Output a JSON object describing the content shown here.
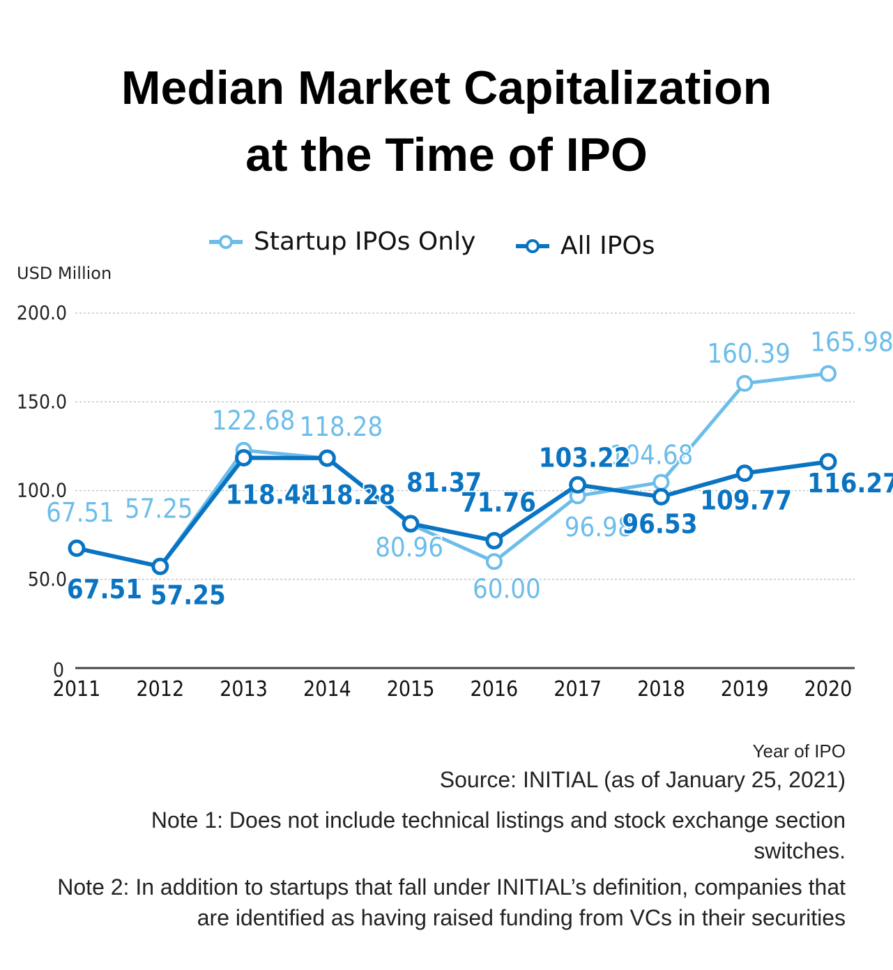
{
  "title_line1": "Median Market Capitalization",
  "title_line2": "at the Time of IPO",
  "colors": {
    "startup": "#6CBDEA",
    "all": "#0A74C2",
    "axis": "#444444",
    "grid": "#BBBBBB",
    "text": "#222222"
  },
  "chart_data": {
    "type": "line",
    "title": "Median Market Capitalization at the Time of IPO",
    "ylabel": "USD Million",
    "xlabel": "Year of IPO",
    "x": [
      "2011",
      "2012",
      "2013",
      "2014",
      "2015",
      "2016",
      "2017",
      "2018",
      "2019",
      "2020"
    ],
    "ylim": [
      0,
      200
    ],
    "yticks": [
      0,
      50,
      100,
      150,
      200
    ],
    "ytick_labels": [
      "0",
      "50.0",
      "100.0",
      "150.0",
      "200.0"
    ],
    "grid": true,
    "legend_position": "top-center",
    "series": [
      {
        "name": "Startup IPOs Only",
        "color": "#6CBDEA",
        "values": [
          67.51,
          57.25,
          122.68,
          118.28,
          80.96,
          60.0,
          96.98,
          104.68,
          160.39,
          165.98
        ],
        "labels": [
          "67.51",
          "57.25",
          "122.68",
          "118.28",
          "80.96",
          "60.00",
          "96.98",
          "104.68",
          "160.39",
          "165.98"
        ]
      },
      {
        "name": "All IPOs",
        "color": "#0A74C2",
        "values": [
          67.51,
          57.25,
          118.48,
          118.28,
          81.37,
          71.76,
          103.22,
          96.53,
          109.77,
          116.27
        ],
        "labels": [
          "67.51",
          "57.25",
          "118.48",
          "118.28",
          "81.37",
          "71.76",
          "103.22",
          "96.53",
          "109.77",
          "116.27"
        ]
      }
    ]
  },
  "footer": {
    "xtitle": "Year of IPO",
    "source": "Source: INITIAL (as of January 25, 2021)",
    "note1": "Note 1: Does not include technical listings and stock exchange section switches.",
    "note2": "Note 2: In addition to startups that fall under INITIAL’s definition, companies that are identified as having raised funding from VCs in their securities"
  }
}
